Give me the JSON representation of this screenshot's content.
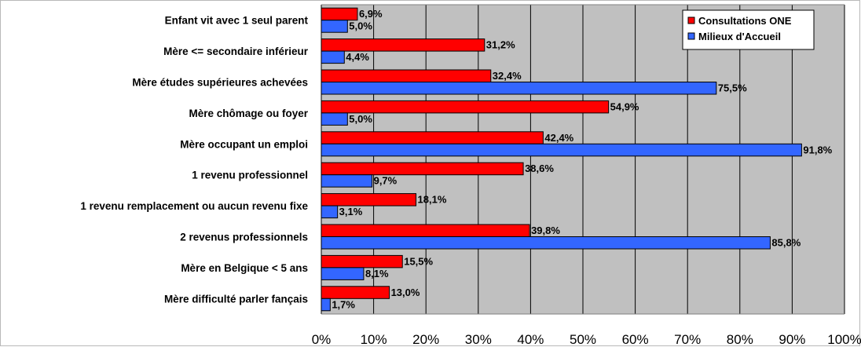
{
  "chart_data": {
    "type": "bar",
    "orientation": "horizontal",
    "categories": [
      "Enfant vit avec 1 seul parent",
      "Mère <= secondaire inférieur",
      "Mère études supérieures achevées",
      "Mère chômage ou foyer",
      "Mère occupant un emploi",
      "1 revenu professionnel",
      "1 revenu remplacement ou aucun revenu fixe",
      "2 revenus professionnels",
      "Mère en Belgique < 5 ans",
      "Mère difficulté parler fançais"
    ],
    "series": [
      {
        "name": "Consultations ONE",
        "color": "#ff0000",
        "values": [
          6.9,
          31.2,
          32.4,
          54.9,
          42.4,
          38.6,
          18.1,
          39.8,
          15.5,
          13.0
        ],
        "labels": [
          "6,9%",
          "31,2%",
          "32,4%",
          "54,9%",
          "42,4%",
          "38,6%",
          "18,1%",
          "39,8%",
          "15,5%",
          "13,0%"
        ]
      },
      {
        "name": "Milieux d'Accueil",
        "color": "#3366ff",
        "values": [
          5.0,
          4.4,
          75.5,
          5.0,
          91.8,
          9.7,
          3.1,
          85.8,
          8.1,
          1.7
        ],
        "labels": [
          "5,0%",
          "4,4%",
          "75,5%",
          "5,0%",
          "91,8%",
          "9,7%",
          "3,1%",
          "85,8%",
          "8,1%",
          "1,7%"
        ]
      }
    ],
    "x_ticks": [
      "0%",
      "10%",
      "20%",
      "30%",
      "40%",
      "50%",
      "60%",
      "70%",
      "80%",
      "90%",
      "100%"
    ],
    "xlim": [
      0,
      100
    ],
    "grid": true,
    "legend_position": "top-right",
    "plot_background": "#c0c0c0"
  }
}
